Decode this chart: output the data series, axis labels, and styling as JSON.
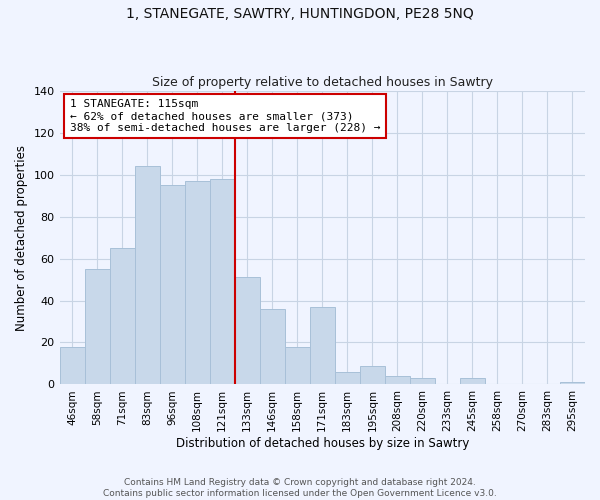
{
  "title": "1, STANEGATE, SAWTRY, HUNTINGDON, PE28 5NQ",
  "subtitle": "Size of property relative to detached houses in Sawtry",
  "xlabel": "Distribution of detached houses by size in Sawtry",
  "ylabel": "Number of detached properties",
  "bar_color": "#c8d8ea",
  "bar_edge_color": "#a8c0d8",
  "categories": [
    "46sqm",
    "58sqm",
    "71sqm",
    "83sqm",
    "96sqm",
    "108sqm",
    "121sqm",
    "133sqm",
    "146sqm",
    "158sqm",
    "171sqm",
    "183sqm",
    "195sqm",
    "208sqm",
    "220sqm",
    "233sqm",
    "245sqm",
    "258sqm",
    "270sqm",
    "283sqm",
    "295sqm"
  ],
  "values": [
    18,
    55,
    65,
    104,
    95,
    97,
    98,
    51,
    36,
    18,
    37,
    6,
    9,
    4,
    3,
    0,
    3,
    0,
    0,
    0,
    1
  ],
  "vline_color": "#cc0000",
  "annotation_title": "1 STANEGATE: 115sqm",
  "annotation_line1": "← 62% of detached houses are smaller (373)",
  "annotation_line2": "38% of semi-detached houses are larger (228) →",
  "annotation_box_facecolor": "#ffffff",
  "annotation_box_edgecolor": "#cc0000",
  "ylim": [
    0,
    140
  ],
  "yticks": [
    0,
    20,
    40,
    60,
    80,
    100,
    120,
    140
  ],
  "grid_color": "#c8d4e4",
  "bg_color": "#f0f4ff",
  "footer1": "Contains HM Land Registry data © Crown copyright and database right 2024.",
  "footer2": "Contains public sector information licensed under the Open Government Licence v3.0."
}
